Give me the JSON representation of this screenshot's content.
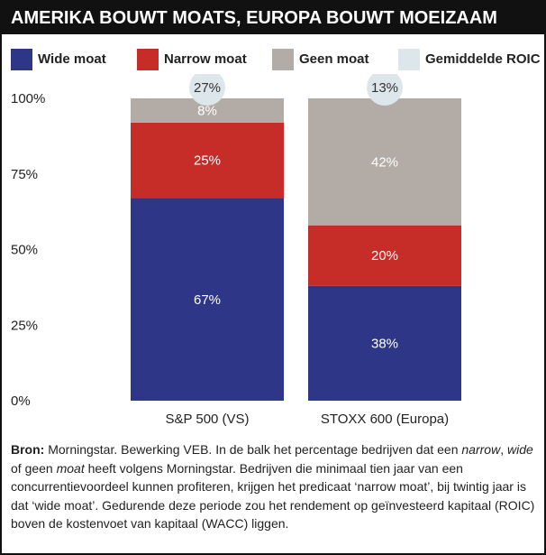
{
  "title": "AMERIKA BOUWT MOATS, EUROPA BOUWT MOEIZAAM",
  "colors": {
    "wide": "#2e3687",
    "narrow": "#c62d28",
    "none": "#b3aca6",
    "roic": "#dde6ea",
    "title_bg": "#111111"
  },
  "legend": [
    {
      "label": "Wide moat",
      "color": "#2e3687"
    },
    {
      "label": "Narrow moat",
      "color": "#c62d28"
    },
    {
      "label": "Geen moat",
      "color": "#b3aca6"
    },
    {
      "label": "Gemiddelde ROIC",
      "color": "#dde6ea"
    }
  ],
  "chart_data": {
    "type": "bar",
    "stacked": true,
    "categories": [
      "S&P 500 (VS)",
      "STOXX 600 (Europa)"
    ],
    "series": [
      {
        "name": "Wide moat",
        "values": [
          67,
          38
        ],
        "labels": [
          "67%",
          "38%"
        ]
      },
      {
        "name": "Narrow moat",
        "values": [
          25,
          20
        ],
        "labels": [
          "25%",
          "20%"
        ]
      },
      {
        "name": "Geen moat",
        "values": [
          8,
          42
        ],
        "labels": [
          "8%",
          "42%"
        ]
      }
    ],
    "roic": {
      "name": "Gemiddelde ROIC",
      "values": [
        27,
        13
      ],
      "labels": [
        "27%",
        "13%"
      ]
    },
    "ylim": [
      0,
      100
    ],
    "yticks": [
      0,
      25,
      50,
      75,
      100
    ],
    "ytick_labels": [
      "0%",
      "25%",
      "50%",
      "75%",
      "100%"
    ],
    "grid": false,
    "legend_position": "top"
  },
  "source": {
    "label": "Bron:",
    "line1": " Morningstar. Bewerking VEB. In de balk het percentage bedrijven dat een ",
    "narrow": "narrow",
    "sep1": ", ",
    "wide": "wide",
    "mid": " of geen ",
    "moat": "moat",
    "rest": " heeft volgens Morningstar. Bedrijven die minimaal tien jaar van een concurrentievoordeel kunnen profiteren, krijgen het predicaat ‘narrow moat’, bij twintig jaar is dat ‘wide moat’. Gedurende deze periode zou het rendement op geïnvesteerd kapitaal (ROIC) boven de kostenvoet van kapitaal (WACC) liggen."
  }
}
